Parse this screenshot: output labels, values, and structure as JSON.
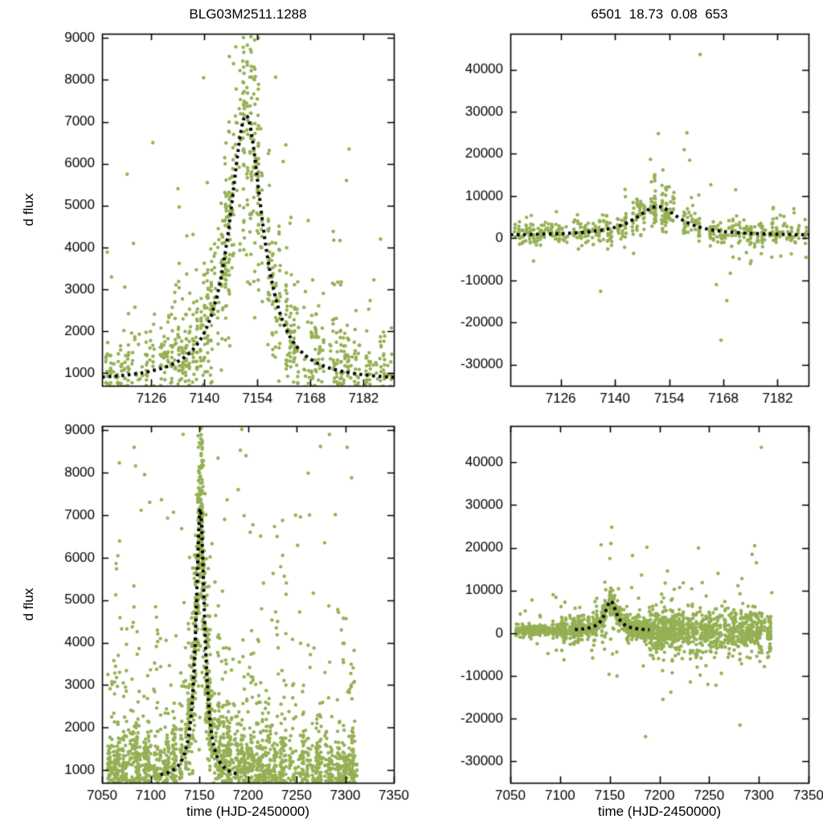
{
  "figure": {
    "background": "#ffffff",
    "text_color": "#000000",
    "axis_color": "#000000"
  },
  "chart_data": [
    {
      "id": "event-window-flux",
      "type": "scatter",
      "title": "BLG03M2511.1288",
      "xlabel": "",
      "ylabel": "d flux",
      "xlim": [
        7113,
        7190
      ],
      "ylim": [
        700,
        9100
      ],
      "xticks": [
        7126,
        7140,
        7154,
        7168,
        7182
      ],
      "yticks": [
        1000,
        2000,
        3000,
        4000,
        5000,
        6000,
        7000,
        8000,
        9000
      ],
      "grid": false,
      "legend": null,
      "point_color": "#95b054",
      "point_radius": 2.2,
      "model_color": "#000000",
      "model": {
        "shape": "microlensing-fit",
        "t0": 7151.0,
        "base": 800,
        "amp": 6350,
        "width": 5.5,
        "power": 1.05,
        "trange": [
          7113,
          7190
        ]
      },
      "scatter_gen": {
        "seed": 101,
        "night_start": 7113.3,
        "night_end": 7189.7,
        "night_step": 0.95,
        "skip_prob": 0.14,
        "pts_min": 5,
        "pts_max": 22,
        "t_jitter": 0.25,
        "sigma0": 380,
        "sigma_frac": 0.17,
        "tail_prob": 0.14,
        "tail_scale": 1600,
        "tail_pos_bias": 0.85,
        "boost": 5000
      },
      "extra_points": [
        [
          7139.8,
          8050
        ],
        [
          7161.5,
          6450
        ],
        [
          7160.8,
          6050
        ],
        [
          7121.3,
          4100
        ],
        [
          7115.5,
          3300
        ],
        [
          7186.5,
          4200
        ],
        [
          7178.2,
          6350
        ],
        [
          7177.5,
          5600
        ],
        [
          7126.4,
          6500
        ],
        [
          7119.6,
          5750
        ]
      ]
    },
    {
      "id": "event-window-reference-dflux",
      "type": "scatter",
      "title": "6501  18.73  0.08  653",
      "xlabel": "",
      "ylabel": "",
      "xlim": [
        7113,
        7190
      ],
      "ylim": [
        -35000,
        48500
      ],
      "xticks": [
        7126,
        7140,
        7154,
        7168,
        7182
      ],
      "yticks": [
        -30000,
        -20000,
        -10000,
        0,
        10000,
        20000,
        30000,
        40000
      ],
      "grid": false,
      "legend": null,
      "point_color": "#95b054",
      "point_radius": 2.2,
      "model_color": "#000000",
      "model": {
        "shape": "microlensing-fit",
        "t0": 7151.0,
        "base": 600,
        "amp": 6900,
        "width": 7.0,
        "power": 1.0,
        "trange": [
          7113,
          7190
        ]
      },
      "scatter_gen": {
        "seed": 202,
        "night_start": 7113.3,
        "night_end": 7189.7,
        "night_step": 0.95,
        "skip_prob": 0.16,
        "pts_min": 4,
        "pts_max": 15,
        "t_jitter": 0.25,
        "sigma0": 1050,
        "sigma_frac": 0.25,
        "tail_prob": 0.12,
        "tail_scale": 3200,
        "tail_pos_bias": 0.6,
        "boost": 7000
      },
      "extra_points": [
        [
          7136.3,
          -12600
        ],
        [
          7167.4,
          -24200
        ],
        [
          7162.0,
          43600
        ],
        [
          7158.6,
          25000
        ],
        [
          7157.9,
          21000
        ],
        [
          7159.3,
          18500
        ],
        [
          7151.2,
          24800
        ],
        [
          7152.4,
          16200
        ],
        [
          7150.3,
          13600
        ],
        [
          7153.1,
          11900
        ],
        [
          7171.2,
          11500
        ],
        [
          7169.8,
          -8300
        ],
        [
          7175.0,
          -6000
        ],
        [
          7118.4,
          5400
        ],
        [
          7124.9,
          6300
        ],
        [
          7186.2,
          7000
        ],
        [
          7180.5,
          -4500
        ],
        [
          7166.2,
          -11000
        ],
        [
          7168.9,
          -14800
        ]
      ]
    },
    {
      "id": "full-season-flux",
      "type": "scatter",
      "title": "",
      "xlabel": "time (HJD-2450000)",
      "ylabel": "d flux",
      "xlim": [
        7050,
        7350
      ],
      "ylim": [
        700,
        9100
      ],
      "xticks": [
        7050,
        7100,
        7150,
        7200,
        7250,
        7300,
        7350
      ],
      "yticks": [
        1000,
        2000,
        3000,
        4000,
        5000,
        6000,
        7000,
        8000,
        9000
      ],
      "grid": false,
      "legend": null,
      "point_color": "#95b054",
      "point_radius": 2.2,
      "model_color": "#000000",
      "model": {
        "shape": "microlensing-fit",
        "t0": 7151.0,
        "base": 800,
        "amp": 6350,
        "width": 5.5,
        "power": 1.05,
        "trange": [
          7110,
          7192
        ]
      },
      "scatter_gen": {
        "seed": 303,
        "night_start": 7056,
        "night_end": 7312,
        "night_step": 1.0,
        "skip_prob": 0.22,
        "pts_min": 4,
        "pts_max": 24,
        "t_jitter": 0.28,
        "sigma0": 360,
        "sigma_frac": 0.18,
        "tail_prob": 0.2,
        "tail_scale": 1700,
        "tail_pos_bias": 0.88,
        "boost": 5000,
        "uniform_outliers": {
          "n": 85,
          "trange": [
            7062,
            7310
          ],
          "yrange": [
            1000,
            9050
          ]
        }
      },
      "extra_points": [
        [
          7152.1,
          9050
        ],
        [
          7151.5,
          8800
        ],
        [
          7083,
          8600
        ],
        [
          7198,
          8400
        ],
        [
          7302,
          8600
        ],
        [
          7249,
          7000
        ],
        [
          7296,
          4300
        ],
        [
          7230,
          6500
        ],
        [
          7216,
          5400
        ],
        [
          7190,
          7600
        ],
        [
          7176,
          6900
        ],
        [
          7068,
          3300
        ],
        [
          7106,
          4600
        ]
      ]
    },
    {
      "id": "full-season-reference-dflux",
      "type": "scatter",
      "title": "",
      "xlabel": "time (HJD-2450000)",
      "ylabel": "",
      "xlim": [
        7050,
        7350
      ],
      "ylim": [
        -35000,
        48500
      ],
      "xticks": [
        7050,
        7100,
        7150,
        7200,
        7250,
        7300,
        7350
      ],
      "yticks": [
        -30000,
        -20000,
        -10000,
        0,
        10000,
        20000,
        30000,
        40000
      ],
      "grid": false,
      "legend": null,
      "point_color": "#95b054",
      "point_radius": 2.2,
      "model_color": "#000000",
      "model": {
        "shape": "microlensing-fit",
        "t0": 7151.0,
        "base": 600,
        "amp": 6900,
        "width": 7.0,
        "power": 1.0,
        "trange": [
          7115,
          7190
        ]
      },
      "scatter_gen": {
        "seed": 404,
        "night_start": 7056,
        "night_end": 7312,
        "night_step": 1.0,
        "skip_prob": 0.22,
        "pts_min": 4,
        "pts_max": 20,
        "t_jitter": 0.28,
        "sigma_zones": [
          [
            7050,
            7100,
            550
          ],
          [
            7100,
            7190,
            1350
          ],
          [
            7190,
            7341,
            2600
          ]
        ],
        "tail_prob": 0.09,
        "tail_scale": 4500,
        "tail_pos_bias": 0.55,
        "boost": 9000,
        "uniform_outliers": {
          "n": 22,
          "trange": [
            7130,
            7310
          ],
          "yrange": [
            -14000,
            22000
          ]
        }
      },
      "extra_points": [
        [
          7302.5,
          43500
        ],
        [
          7186.0,
          -24200
        ],
        [
          7281.0,
          -21500
        ],
        [
          7295.8,
          20500
        ],
        [
          7297.5,
          16500
        ],
        [
          7259.0,
          14000
        ],
        [
          7211.5,
          -13800
        ],
        [
          7224.0,
          11800
        ],
        [
          7305.5,
          -7800
        ],
        [
          7152.0,
          24800
        ],
        [
          7151.2,
          21000
        ],
        [
          7150.1,
          17500
        ],
        [
          7149.3,
          -9600
        ],
        [
          7203.5,
          -15500
        ],
        [
          7313.0,
          9500
        ],
        [
          7241.0,
          -9800
        ],
        [
          7232.5,
          10400
        ]
      ]
    }
  ]
}
